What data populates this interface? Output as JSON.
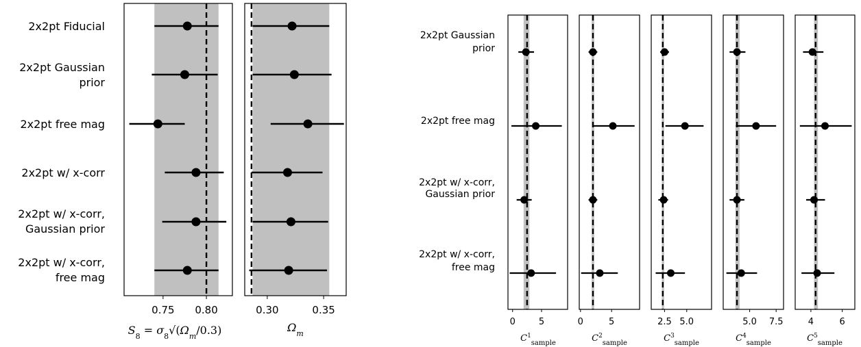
{
  "chart_data": [
    {
      "type": "scatter",
      "group": "left",
      "rows": [
        "2x2pt Fiducial",
        "2x2pt Gaussian prior",
        "2x2pt free mag",
        "2x2pt w/ x-corr",
        "2x2pt w/ x-corr, Gaussian prior",
        "2x2pt w/ x-corr, free mag"
      ],
      "xlabel": "S8 = σ8 √(Ωm/0.3)",
      "xlim": [
        0.705,
        0.83
      ],
      "xticks": [
        0.75,
        0.8
      ],
      "xtick_labels": [
        "0.75",
        "0.80"
      ],
      "truth": 0.8,
      "band": [
        0.74,
        0.814
      ],
      "points": [
        {
          "x": 0.778,
          "lo": 0.74,
          "hi": 0.814
        },
        {
          "x": 0.775,
          "lo": 0.737,
          "hi": 0.813
        },
        {
          "x": 0.744,
          "lo": 0.711,
          "hi": 0.775
        },
        {
          "x": 0.788,
          "lo": 0.752,
          "hi": 0.82
        },
        {
          "x": 0.788,
          "lo": 0.749,
          "hi": 0.823
        },
        {
          "x": 0.778,
          "lo": 0.74,
          "hi": 0.814
        }
      ]
    },
    {
      "type": "scatter",
      "group": "left",
      "xlabel": "Ωm",
      "xlim": [
        0.28,
        0.37
      ],
      "xticks": [
        0.3,
        0.35
      ],
      "xtick_labels": [
        "0.30",
        "0.35"
      ],
      "truth": 0.286,
      "band": [
        0.287,
        0.355
      ],
      "points": [
        {
          "x": 0.322,
          "lo": 0.287,
          "hi": 0.355
        },
        {
          "x": 0.324,
          "lo": 0.287,
          "hi": 0.357
        },
        {
          "x": 0.336,
          "lo": 0.303,
          "hi": 0.368
        },
        {
          "x": 0.318,
          "lo": 0.286,
          "hi": 0.349
        },
        {
          "x": 0.321,
          "lo": 0.287,
          "hi": 0.354
        },
        {
          "x": 0.319,
          "lo": 0.284,
          "hi": 0.353
        }
      ]
    },
    {
      "type": "scatter",
      "group": "right",
      "rows": [
        "2x2pt Gaussian prior",
        "2x2pt free mag",
        "2x2pt w/ x-corr, Gaussian prior",
        "2x2pt w/ x-corr, free mag"
      ],
      "xlabel": "C^1_sample",
      "xlim": [
        -0.8,
        9.5
      ],
      "xticks": [
        0,
        5
      ],
      "xtick_labels": [
        "0",
        "5"
      ],
      "truth": 2.5,
      "band": [
        1.9,
        2.9
      ],
      "points": [
        {
          "x": 2.3,
          "lo": 1.0,
          "hi": 3.7
        },
        {
          "x": 4.0,
          "lo": -0.2,
          "hi": 8.5
        },
        {
          "x": 2.0,
          "lo": 0.7,
          "hi": 3.3
        },
        {
          "x": 3.2,
          "lo": -0.5,
          "hi": 7.5
        }
      ]
    },
    {
      "type": "scatter",
      "group": "right",
      "xlabel": "C^2_sample",
      "xlim": [
        -0.2,
        9.5
      ],
      "xticks": [
        0,
        5
      ],
      "xtick_labels": [
        "0",
        "5"
      ],
      "truth": 2.0,
      "band": [
        1.8,
        2.2
      ],
      "points": [
        {
          "x": 2.0,
          "lo": 1.3,
          "hi": 2.7
        },
        {
          "x": 5.2,
          "lo": 1.9,
          "hi": 8.7
        },
        {
          "x": 2.0,
          "lo": 1.3,
          "hi": 2.7
        },
        {
          "x": 3.1,
          "lo": 0.1,
          "hi": 6.0
        }
      ]
    },
    {
      "type": "scatter",
      "group": "right",
      "xlabel": "C^3_sample",
      "xlim": [
        1.0,
        7.8
      ],
      "xticks": [
        2.5,
        5.0
      ],
      "xtick_labels": [
        "2.5",
        "5.0"
      ],
      "truth": 2.3,
      "band": [
        2.2,
        2.45
      ],
      "points": [
        {
          "x": 2.5,
          "lo": 2.0,
          "hi": 3.0
        },
        {
          "x": 4.8,
          "lo": 2.6,
          "hi": 6.9
        },
        {
          "x": 2.4,
          "lo": 1.8,
          "hi": 2.9
        },
        {
          "x": 3.2,
          "lo": 1.5,
          "hi": 4.8
        }
      ]
    },
    {
      "type": "scatter",
      "group": "right",
      "xlabel": "C^4_sample",
      "xlim": [
        2.5,
        8.2
      ],
      "xticks": [
        5.0,
        7.5
      ],
      "xtick_labels": [
        "5.0",
        "7.5"
      ],
      "truth": 3.8,
      "band": [
        3.65,
        4.05
      ],
      "points": [
        {
          "x": 3.8,
          "lo": 3.1,
          "hi": 4.6
        },
        {
          "x": 5.6,
          "lo": 3.7,
          "hi": 7.5
        },
        {
          "x": 3.8,
          "lo": 3.1,
          "hi": 4.5
        },
        {
          "x": 4.2,
          "lo": 2.8,
          "hi": 5.7
        }
      ]
    },
    {
      "type": "scatter",
      "group": "right",
      "xlabel": "C^5_sample",
      "xlim": [
        3.0,
        6.8
      ],
      "xticks": [
        4,
        6
      ],
      "xtick_labels": [
        "4",
        "6"
      ],
      "truth": 4.3,
      "band": [
        4.2,
        4.45
      ],
      "points": [
        {
          "x": 4.1,
          "lo": 3.5,
          "hi": 4.8
        },
        {
          "x": 4.9,
          "lo": 3.3,
          "hi": 6.6
        },
        {
          "x": 4.2,
          "lo": 3.7,
          "hi": 4.9
        },
        {
          "x": 4.4,
          "lo": 3.4,
          "hi": 5.5
        }
      ]
    }
  ]
}
